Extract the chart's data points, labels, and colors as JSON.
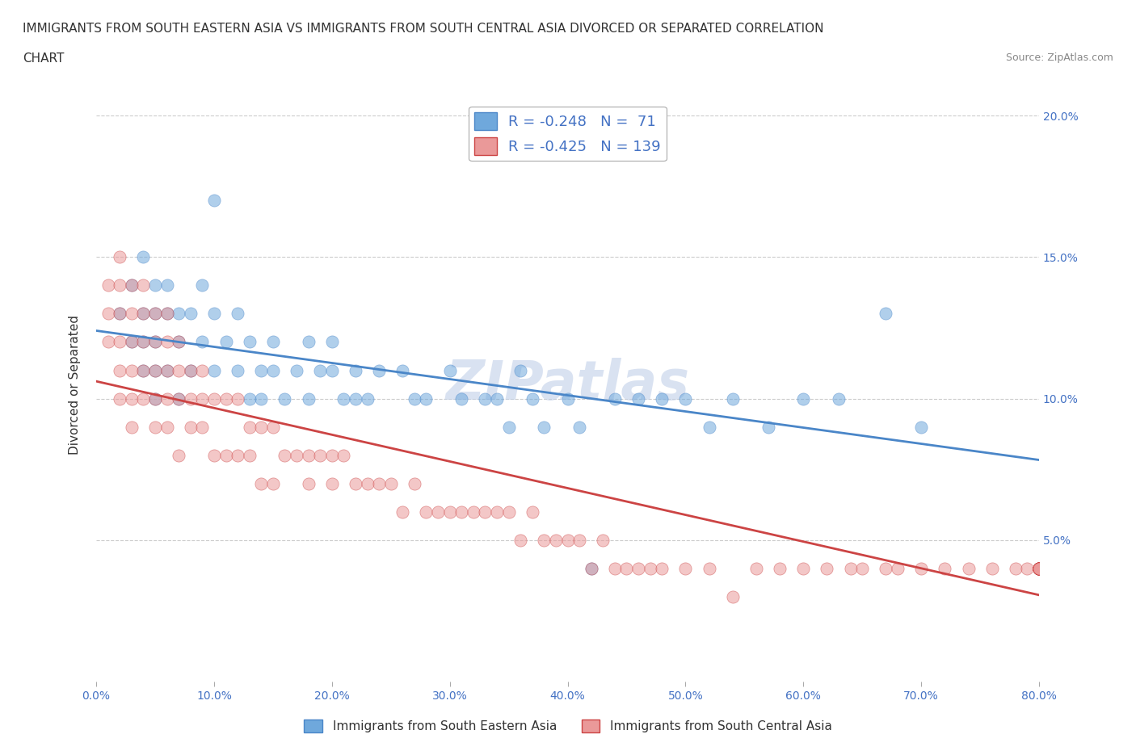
{
  "title_line1": "IMMIGRANTS FROM SOUTH EASTERN ASIA VS IMMIGRANTS FROM SOUTH CENTRAL ASIA DIVORCED OR SEPARATED CORRELATION",
  "title_line2": "CHART",
  "source": "Source: ZipAtlas.com",
  "blue_label": "Immigrants from South Eastern Asia",
  "pink_label": "Immigrants from South Central Asia",
  "blue_R": -0.248,
  "blue_N": 71,
  "pink_R": -0.425,
  "pink_N": 139,
  "blue_color": "#6fa8dc",
  "pink_color": "#ea9999",
  "blue_line_color": "#4a86c8",
  "pink_line_color": "#cc4444",
  "ylabel": "Divorced or Separated",
  "xlabel": "",
  "xlim": [
    0.0,
    0.8
  ],
  "ylim": [
    0.0,
    0.21
  ],
  "xticks": [
    0.0,
    0.1,
    0.2,
    0.3,
    0.4,
    0.5,
    0.6,
    0.7,
    0.8
  ],
  "yticks_left": [
    0.0,
    0.05,
    0.1,
    0.15,
    0.2
  ],
  "yticks_right": [
    0.05,
    0.1,
    0.15,
    0.2
  ],
  "ytick_right_labels": [
    "5.0%",
    "10.0%",
    "15.0%",
    "20.0%"
  ],
  "watermark": "ZIPatlas",
  "blue_x": [
    0.02,
    0.03,
    0.03,
    0.04,
    0.04,
    0.04,
    0.04,
    0.05,
    0.05,
    0.05,
    0.05,
    0.05,
    0.06,
    0.06,
    0.06,
    0.07,
    0.07,
    0.07,
    0.08,
    0.08,
    0.09,
    0.09,
    0.1,
    0.1,
    0.1,
    0.11,
    0.12,
    0.12,
    0.13,
    0.13,
    0.14,
    0.14,
    0.15,
    0.15,
    0.16,
    0.17,
    0.18,
    0.18,
    0.19,
    0.2,
    0.2,
    0.21,
    0.22,
    0.22,
    0.23,
    0.24,
    0.26,
    0.27,
    0.28,
    0.3,
    0.31,
    0.33,
    0.34,
    0.35,
    0.36,
    0.37,
    0.38,
    0.4,
    0.41,
    0.42,
    0.44,
    0.46,
    0.48,
    0.5,
    0.52,
    0.54,
    0.57,
    0.6,
    0.63,
    0.67,
    0.7
  ],
  "blue_y": [
    0.13,
    0.14,
    0.12,
    0.15,
    0.13,
    0.12,
    0.11,
    0.14,
    0.13,
    0.12,
    0.11,
    0.1,
    0.14,
    0.13,
    0.11,
    0.13,
    0.12,
    0.1,
    0.13,
    0.11,
    0.14,
    0.12,
    0.17,
    0.13,
    0.11,
    0.12,
    0.13,
    0.11,
    0.12,
    0.1,
    0.11,
    0.1,
    0.12,
    0.11,
    0.1,
    0.11,
    0.12,
    0.1,
    0.11,
    0.12,
    0.11,
    0.1,
    0.11,
    0.1,
    0.1,
    0.11,
    0.11,
    0.1,
    0.1,
    0.11,
    0.1,
    0.1,
    0.1,
    0.09,
    0.11,
    0.1,
    0.09,
    0.1,
    0.09,
    0.04,
    0.1,
    0.1,
    0.1,
    0.1,
    0.09,
    0.1,
    0.09,
    0.1,
    0.1,
    0.13,
    0.09
  ],
  "pink_x": [
    0.01,
    0.01,
    0.01,
    0.02,
    0.02,
    0.02,
    0.02,
    0.02,
    0.02,
    0.03,
    0.03,
    0.03,
    0.03,
    0.03,
    0.03,
    0.04,
    0.04,
    0.04,
    0.04,
    0.04,
    0.05,
    0.05,
    0.05,
    0.05,
    0.05,
    0.06,
    0.06,
    0.06,
    0.06,
    0.06,
    0.07,
    0.07,
    0.07,
    0.07,
    0.08,
    0.08,
    0.08,
    0.09,
    0.09,
    0.09,
    0.1,
    0.1,
    0.11,
    0.11,
    0.12,
    0.12,
    0.13,
    0.13,
    0.14,
    0.14,
    0.15,
    0.15,
    0.16,
    0.17,
    0.18,
    0.18,
    0.19,
    0.2,
    0.2,
    0.21,
    0.22,
    0.23,
    0.24,
    0.25,
    0.26,
    0.27,
    0.28,
    0.29,
    0.3,
    0.31,
    0.32,
    0.33,
    0.34,
    0.35,
    0.36,
    0.37,
    0.38,
    0.39,
    0.4,
    0.41,
    0.42,
    0.43,
    0.44,
    0.45,
    0.46,
    0.47,
    0.48,
    0.5,
    0.52,
    0.54,
    0.56,
    0.58,
    0.6,
    0.62,
    0.64,
    0.65,
    0.67,
    0.68,
    0.7,
    0.72,
    0.74,
    0.76,
    0.78,
    0.79,
    0.8,
    0.8,
    0.8,
    0.8,
    0.8,
    0.8,
    0.8,
    0.8,
    0.8,
    0.8,
    0.8,
    0.8,
    0.8,
    0.8,
    0.8,
    0.8,
    0.8,
    0.8,
    0.8,
    0.8,
    0.8,
    0.8,
    0.8,
    0.8,
    0.8,
    0.8,
    0.8,
    0.8,
    0.8,
    0.8,
    0.8
  ],
  "pink_y": [
    0.14,
    0.13,
    0.12,
    0.15,
    0.14,
    0.13,
    0.12,
    0.11,
    0.1,
    0.14,
    0.13,
    0.12,
    0.11,
    0.1,
    0.09,
    0.14,
    0.13,
    0.12,
    0.11,
    0.1,
    0.13,
    0.12,
    0.11,
    0.1,
    0.09,
    0.13,
    0.12,
    0.11,
    0.1,
    0.09,
    0.12,
    0.11,
    0.1,
    0.08,
    0.11,
    0.1,
    0.09,
    0.11,
    0.1,
    0.09,
    0.1,
    0.08,
    0.1,
    0.08,
    0.1,
    0.08,
    0.09,
    0.08,
    0.09,
    0.07,
    0.09,
    0.07,
    0.08,
    0.08,
    0.08,
    0.07,
    0.08,
    0.08,
    0.07,
    0.08,
    0.07,
    0.07,
    0.07,
    0.07,
    0.06,
    0.07,
    0.06,
    0.06,
    0.06,
    0.06,
    0.06,
    0.06,
    0.06,
    0.06,
    0.05,
    0.06,
    0.05,
    0.05,
    0.05,
    0.05,
    0.04,
    0.05,
    0.04,
    0.04,
    0.04,
    0.04,
    0.04,
    0.04,
    0.04,
    0.03,
    0.04,
    0.04,
    0.04,
    0.04,
    0.04,
    0.04,
    0.04,
    0.04,
    0.04,
    0.04,
    0.04,
    0.04,
    0.04,
    0.04,
    0.04,
    0.04,
    0.04,
    0.04,
    0.04,
    0.04,
    0.04,
    0.04,
    0.04,
    0.04,
    0.04,
    0.04,
    0.04,
    0.04,
    0.04,
    0.04,
    0.04,
    0.04,
    0.04,
    0.04,
    0.04,
    0.04,
    0.04,
    0.04,
    0.04,
    0.04,
    0.04,
    0.04,
    0.04,
    0.04,
    0.04
  ],
  "title_fontsize": 11,
  "axis_label_color": "#666666",
  "tick_color": "#4472c4",
  "grid_color": "#cccccc",
  "watermark_color": "#c0cfe8",
  "legend_text_color": "#4472c4"
}
